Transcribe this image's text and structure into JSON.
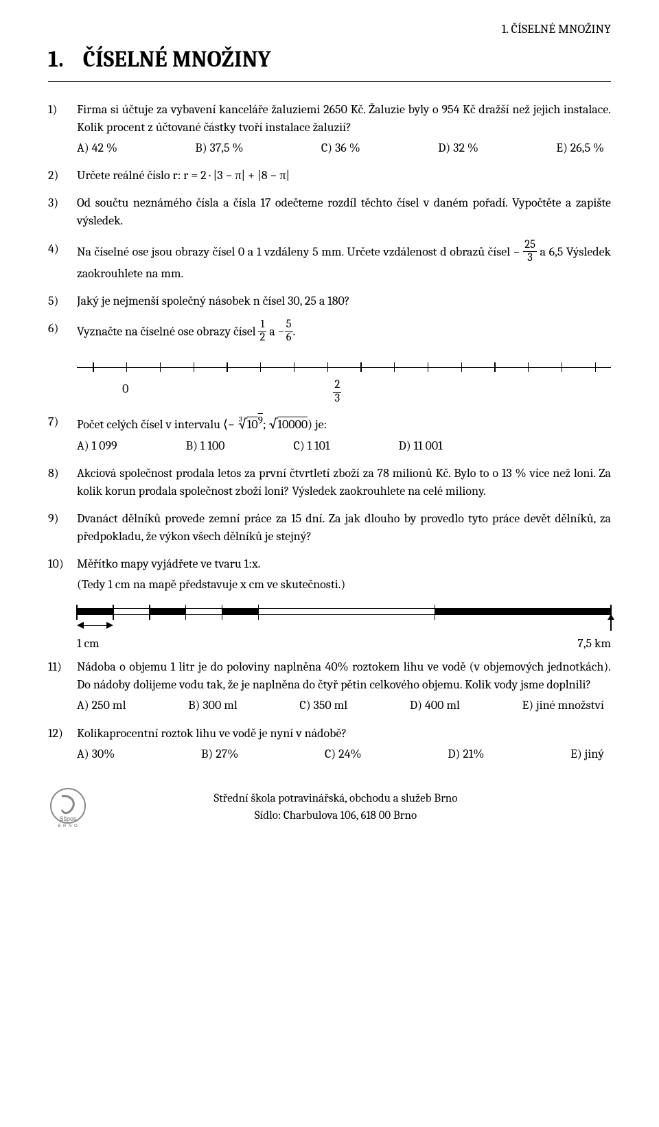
{
  "header": {
    "running_head": "1. ČÍSELNÉ MNOŽINY",
    "chapter_number": "1.",
    "chapter_title": "ČÍSELNÉ MNOŽINY"
  },
  "items": [
    {
      "num": "1)",
      "text": "Firma si účtuje za vybavení kanceláře žaluziemi 2650 Kč. Žaluzie byly o 954 Kč dražší než jejich instalace. Kolik procent z účtované částky tvoří instalace žaluzií?",
      "options": [
        "A) 42 %",
        "B) 37,5 %",
        "C) 36 %",
        "D) 32 %",
        "E) 26,5 %"
      ]
    },
    {
      "num": "2)",
      "text": "Určete reálné číslo r:  r = 2 · |3 − π| + |8 − π|"
    },
    {
      "num": "3)",
      "text": "Od součtu neznámého čísla a čísla 17 odečteme rozdíl těchto čísel v daném pořadí. Vypočtěte a zapište výsledek."
    },
    {
      "num": "4)",
      "pre": "Na číselné ose jsou obrazy čísel 0 a 1 vzdáleny 5 mm. Určete vzdálenost d obrazů čísel −",
      "frac": {
        "num": "25",
        "den": "3"
      },
      "post": " a 6,5 Výsledek zaokrouhlete na mm."
    },
    {
      "num": "5)",
      "text": "Jaký je nejmenší společný násobek n čísel 30, 25 a 180?"
    },
    {
      "num": "6)",
      "pre": "Vyznačte na číselné ose obrazy čísel ",
      "frac1": {
        "num": "1",
        "den": "2"
      },
      "mid": " a −",
      "frac2": {
        "num": "5",
        "den": "6"
      },
      "post": "."
    },
    {
      "num": "7)",
      "interval_pre": "Počet celých čísel v intervalu ",
      "interval_post": " je:",
      "cbrt_inner": "10",
      "cbrt_exp": "9",
      "sqrt_inner": "10000",
      "options4": [
        "A) 1 099",
        "B) 1 100",
        "C) 1 101",
        "D) 11 001"
      ]
    },
    {
      "num": "8)",
      "text": "Akciová společnost prodala letos za první čtvrtletí zboží za 78 milionů Kč. Bylo to o 13 % více než loni. Za kolik korun prodala společnost zboží loni? Výsledek zaokrouhlete na celé miliony."
    },
    {
      "num": "9)",
      "text": "Dvanáct dělníků provede zemní práce za 15 dní. Za jak dlouho by provedlo tyto práce devět dělníků, za předpokladu, že výkon všech dělníků je stejný?"
    },
    {
      "num": "10)",
      "text": "Měřítko mapy vyjádřete ve tvaru 1:x.",
      "subtext": "(Tedy 1 cm na mapě představuje x cm ve skutečnosti.)"
    },
    {
      "num": "11)",
      "text": "Nádoba o objemu 1 litr je do poloviny naplněna 40% roztokem lihu ve vodě (v objemových jednotkách). Do nádoby dolijeme vodu tak, že je naplněna do čtyř pětin celkového objemu. Kolik vody jsme doplnili?",
      "options": [
        "A) 250 ml",
        "B) 300 ml",
        "C) 350 ml",
        "D) 400 ml",
        "E) jiné množství"
      ]
    },
    {
      "num": "12)",
      "text": "Kolikaprocentní roztok lihu ve vodě je nyní v nádobě?",
      "options": [
        "A) 30%",
        "B) 27%",
        "C) 24%",
        "D) 21%",
        "E) jiný"
      ]
    }
  ],
  "axis": {
    "tick_count": 16,
    "tick_positions_pct": [
      3.0,
      9.27,
      15.53,
      21.8,
      28.07,
      34.33,
      40.6,
      46.87,
      53.13,
      59.4,
      65.67,
      71.93,
      78.2,
      84.47,
      90.73,
      97.0
    ],
    "label_0": "0",
    "label_frac": {
      "num": "2",
      "den": "3"
    },
    "line_color": "#000000"
  },
  "ruler": {
    "segments": [
      {
        "left_pct": 0.0,
        "width_pct": 6.8,
        "black": true
      },
      {
        "left_pct": 6.8,
        "width_pct": 6.8,
        "black": false
      },
      {
        "left_pct": 13.6,
        "width_pct": 6.8,
        "black": true
      },
      {
        "left_pct": 20.4,
        "width_pct": 6.8,
        "black": false
      },
      {
        "left_pct": 27.2,
        "width_pct": 6.8,
        "black": true
      },
      {
        "left_pct": 34.0,
        "width_pct": 33.0,
        "black": false
      },
      {
        "left_pct": 67.0,
        "width_pct": 33.0,
        "black": true
      }
    ],
    "tick_positions_pct": [
      0.0,
      6.8,
      13.6,
      20.4,
      27.2,
      34.0,
      67.0,
      100.0
    ],
    "arrow_left_pct": 0.0,
    "arrow_right_pct": 6.8,
    "up_arrow_pct": 100.0,
    "label_left": "1 cm",
    "label_right": "7,5 km",
    "black": "#000000",
    "white": "#ffffff",
    "border": "#000000"
  },
  "footer": {
    "line1": "Střední škola potravinářská, obchodu a služeb Brno",
    "line2": "Sídlo: Charbulova 106, 618 00 Brno",
    "logo_text": "Sšpos",
    "logo_sub": "B R N O"
  }
}
